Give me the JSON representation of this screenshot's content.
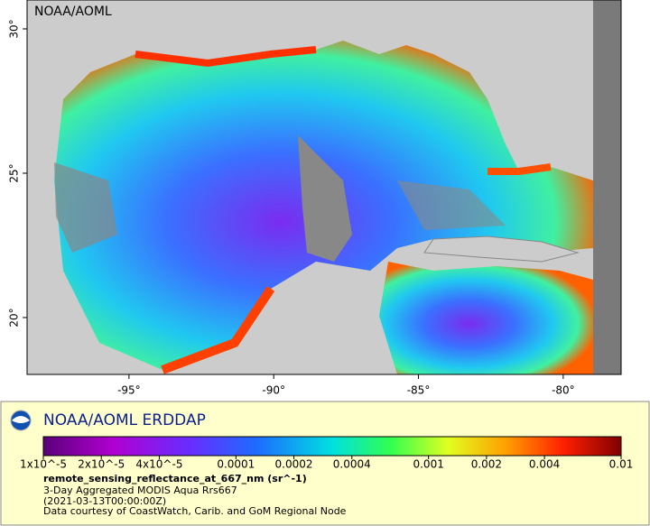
{
  "map": {
    "watermark": "NOAA/AOML",
    "xlim": [
      -98.52,
      -78.0
    ],
    "ylim": [
      18.03,
      31.0
    ],
    "xticks": [
      {
        "value": -95,
        "label": "-95°"
      },
      {
        "value": -90,
        "label": "-90°"
      },
      {
        "value": -85,
        "label": "-85°"
      },
      {
        "value": -80,
        "label": "-80°"
      }
    ],
    "yticks": [
      {
        "value": 20,
        "label": "20°"
      },
      {
        "value": 25,
        "label": "25°"
      },
      {
        "value": 30,
        "label": "30°"
      }
    ]
  },
  "legend": {
    "title": "NOAA/AOML ERDDAP",
    "colorbar_lim": [
      1e-05,
      0.01
    ],
    "colorbar_ticks": [
      {
        "value": 1e-05,
        "label": "1x10^-5"
      },
      {
        "value": 2e-05,
        "label": "2x10^-5"
      },
      {
        "value": 4e-05,
        "label": "4x10^-5"
      },
      0.0001,
      0.0002,
      0.0004,
      0.001,
      0.002,
      0.004,
      0.01
    ],
    "variable": "remote_sensing_reflectance_at_667_nm (sr^-1)",
    "lines": [
      "3-Day Aggregated MODIS Aqua Rrs667",
      "(2021-03-13T00:00:00Z)",
      "Data courtesy of CoastWatch, Carib. and GoM Regional Node"
    ]
  }
}
